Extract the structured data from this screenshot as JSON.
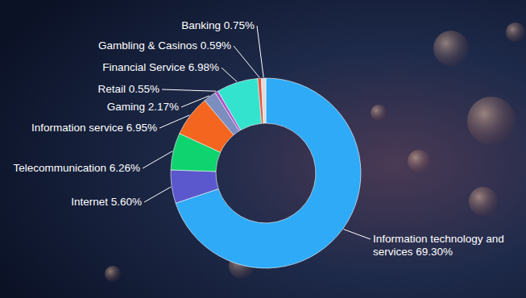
{
  "chart_data": {
    "type": "donut",
    "categories": [
      "Information technology and services",
      "Internet",
      "Telecommunication",
      "Information service",
      "Gaming",
      "Retail",
      "Financial Service",
      "Gambling & Casinos",
      "Banking"
    ],
    "values": [
      69.3,
      5.6,
      6.26,
      6.95,
      2.17,
      0.55,
      6.98,
      0.59,
      0.75
    ],
    "value_labels": [
      "69.30%",
      "5.60%",
      "6.26%",
      "6.95%",
      "2.17%",
      "0.55%",
      "6.98%",
      "0.59%",
      "0.75%"
    ],
    "colors": [
      "#2eaaf7",
      "#5b57cc",
      "#0fd36e",
      "#f4661f",
      "#7c8dbf",
      "#b452c8",
      "#33e3cd",
      "#e5523c",
      "#dcdcdc"
    ],
    "data_labels": true
  }
}
